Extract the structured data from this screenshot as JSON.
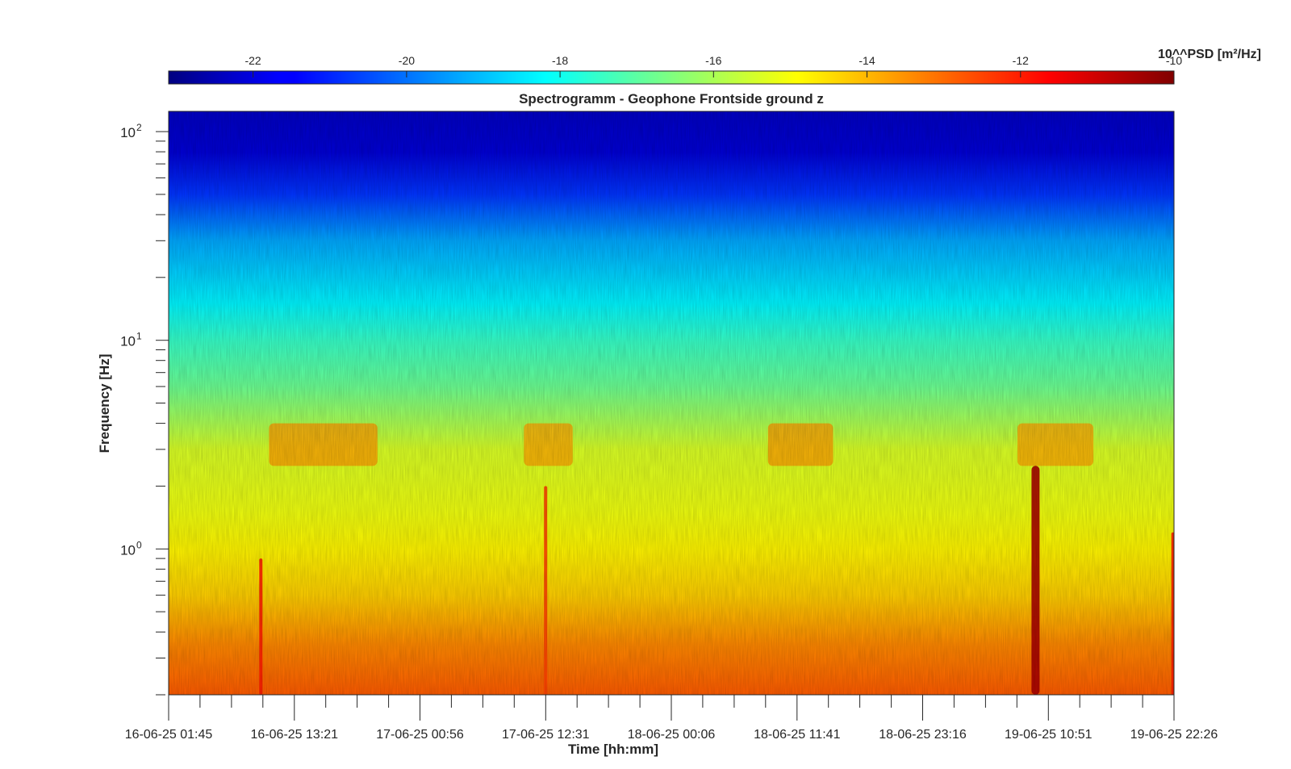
{
  "chart_data": {
    "type": "heatmap",
    "title": "Spectrogramm - Geophone Frontside ground z",
    "xlabel": "Time [hh:mm]",
    "ylabel": "Frequency [Hz]",
    "yscale": "log",
    "ylim": [
      0.2,
      125
    ],
    "y_tick_labels": [
      {
        "base": "10",
        "exp": "2",
        "value": 100
      },
      {
        "base": "10",
        "exp": "1",
        "value": 10
      },
      {
        "base": "10",
        "exp": "0",
        "value": 1
      }
    ],
    "x_tick_labels": [
      "16-06-25 01:45",
      "16-06-25 13:21",
      "17-06-25 00:56",
      "17-06-25 12:31",
      "18-06-25 00:06",
      "18-06-25 11:41",
      "18-06-25 23:16",
      "19-06-25 10:51",
      "19-06-25 22:26"
    ],
    "colorbar": {
      "label": "10^^PSD [m²/Hz]",
      "colormap": "jet",
      "range": [
        -23.1,
        -10
      ],
      "ticks": [
        "-22",
        "-20",
        "-18",
        "-16",
        "-14",
        "-12",
        "-10"
      ],
      "tick_values": [
        -22,
        -20,
        -18,
        -16,
        -14,
        -12,
        -10
      ],
      "location": "top"
    },
    "psd_profile_by_frequency": [
      {
        "freq_hz": 120,
        "log10_psd": -22.2
      },
      {
        "freq_hz": 80,
        "log10_psd": -22.0
      },
      {
        "freq_hz": 50,
        "log10_psd": -20.8
      },
      {
        "freq_hz": 30,
        "log10_psd": -19.3
      },
      {
        "freq_hz": 15,
        "log10_psd": -18.3
      },
      {
        "freq_hz": 10,
        "log10_psd": -17.5
      },
      {
        "freq_hz": 6,
        "log10_psd": -16.8
      },
      {
        "freq_hz": 3,
        "log10_psd": -15.4
      },
      {
        "freq_hz": 1.5,
        "log10_psd": -15.1
      },
      {
        "freq_hz": 1,
        "log10_psd": -14.8
      },
      {
        "freq_hz": 0.6,
        "log10_psd": -14.3
      },
      {
        "freq_hz": 0.35,
        "log10_psd": -13.4
      },
      {
        "freq_hz": 0.2,
        "log10_psd": -12.8
      }
    ],
    "daytime_activity_bands": [
      {
        "start": "16-06-25 11:00",
        "end": "16-06-25 21:00",
        "freq_range_hz": [
          2.5,
          4.0
        ],
        "log10_psd": -13.6
      },
      {
        "start": "17-06-25 10:30",
        "end": "17-06-25 15:00",
        "freq_range_hz": [
          2.5,
          4.0
        ],
        "log10_psd": -13.7
      },
      {
        "start": "18-06-25 09:00",
        "end": "18-06-25 15:00",
        "freq_range_hz": [
          2.5,
          4.0
        ],
        "log10_psd": -13.6
      },
      {
        "start": "19-06-25 08:00",
        "end": "19-06-25 15:00",
        "freq_range_hz": [
          2.5,
          4.0
        ],
        "log10_psd": -13.7
      }
    ],
    "events": [
      {
        "time": "16-06-25 10:15",
        "freq_range_hz": [
          0.2,
          0.9
        ],
        "log10_psd": -12.0
      },
      {
        "time": "17-06-25 12:30",
        "freq_range_hz": [
          0.2,
          2.0
        ],
        "log10_psd": -12.5
      },
      {
        "time": "19-06-25 09:40",
        "freq_range_hz": [
          0.2,
          2.5
        ],
        "log10_psd": -10.5
      },
      {
        "time": "19-06-25 22:20",
        "freq_range_hz": [
          0.2,
          1.2
        ],
        "log10_psd": -12.0
      }
    ],
    "grid": false
  }
}
